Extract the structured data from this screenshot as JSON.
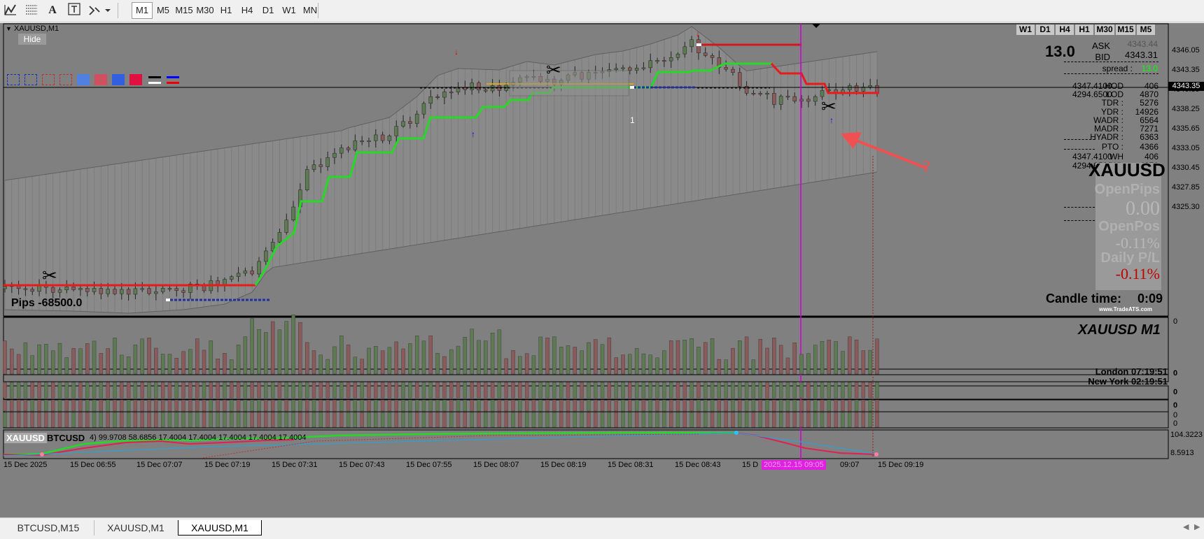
{
  "toolbar": {
    "text_tool": "A",
    "timeframes": [
      "M1",
      "M5",
      "M15",
      "M30",
      "H1",
      "H4",
      "D1",
      "W1",
      "MN"
    ],
    "active_timeframe": "M1"
  },
  "chart": {
    "symbol_title": "XAUUSD,M1",
    "hide_button": "Hide",
    "pips_label": "Pips -68500.0",
    "right_tf_buttons": [
      "W1",
      "D1",
      "H4",
      "H1",
      "M30",
      "M15",
      "M5"
    ],
    "spread_big": "13.0",
    "ask_label": "ASK",
    "ask_value": "4343.44",
    "bid_label": "BID",
    "bid_value": "4343.31",
    "spread_label": "spread :",
    "spread_value": "13.0",
    "stats": [
      {
        "label": "HOD",
        "extra": "4347.4100",
        "value": "406"
      },
      {
        "label": "LOD",
        "extra": "4294.6500",
        "value": "4870"
      },
      {
        "label": "TDR :",
        "extra": "",
        "value": "5276"
      },
      {
        "label": "YDR :",
        "extra": "",
        "value": "14926"
      },
      {
        "label": "WADR :",
        "extra": "",
        "value": "6564"
      },
      {
        "label": "MADR :",
        "extra": "",
        "value": "7271"
      },
      {
        "label": "HYADR :",
        "extra": "",
        "value": "6363"
      },
      {
        "label": "PTO :",
        "extra": "",
        "value": "4366"
      },
      {
        "label": "WH",
        "extra": "4347.4100",
        "value": "406"
      },
      {
        "label": "WL",
        "extra": "4294.6500",
        "value": "4870"
      }
    ],
    "panel_symbol": "XAUUSD",
    "open_pips_label": "OpenPips",
    "open_pips_value": "0.00",
    "open_pos_label": "OpenPos",
    "open_pos_value": "-0.11%",
    "daily_pl_label": "Daily P/L",
    "daily_pl_value": "-0.11%",
    "candle_time_label": "Candle time:",
    "candle_time_value": "0:09",
    "site_label": "www.TradeATS.com",
    "marker_one": "1",
    "question_mark": "?",
    "price_axis": [
      "4346.05",
      "4343.35",
      "4340.85",
      "4338.25",
      "4335.65",
      "4333.05",
      "4330.45",
      "4327.85",
      "4325.30"
    ],
    "current_price": "4343.35",
    "vline_time_label": "2025.12.15 09:05",
    "time_axis": [
      "15 Dec 2025",
      "15 Dec 06:55",
      "15 Dec 07:07",
      "15 Dec 07:19",
      "15 Dec 07:31",
      "15 Dec 07:43",
      "15 Dec 07:55",
      "15 Dec 08:07",
      "15 Dec 08:19",
      "15 Dec 08:31",
      "15 Dec 08:43",
      "15 D",
      "09:07",
      "15 Dec 09:19"
    ]
  },
  "volume_panel": {
    "title": "XAUUSD  M1",
    "axis_top": "0",
    "london_label": "London 07:19:51",
    "newyork_label": "New York 02:19:51"
  },
  "mini_panels": [
    {
      "axis": "0"
    },
    {
      "axis": "0"
    },
    {
      "axis": "0"
    },
    {
      "axis": [
        "0",
        "0"
      ]
    }
  ],
  "bottom_panel": {
    "symbol_a": "XAUUSD",
    "symbol_b": "BTCUSD",
    "values_text": "4) 99.9708 58.6856 17.4004 17.4004 17.4004 17.4004 17.4004",
    "axis_top": "104.3223",
    "axis_bottom": "8.5913"
  },
  "tabs": [
    "BTCUSD,M15",
    "XAUUSD,M1",
    "XAUUSD,M1"
  ],
  "active_tab_index": 2,
  "colors": {
    "chart_bg": "#808080",
    "bull": "#5e7a53",
    "bear": "#8b5a5a",
    "support_green": "#27d827",
    "resistance_red": "#e81a1a",
    "vertical_line": "#d000d0",
    "arrow_annotation": "#f05050"
  }
}
